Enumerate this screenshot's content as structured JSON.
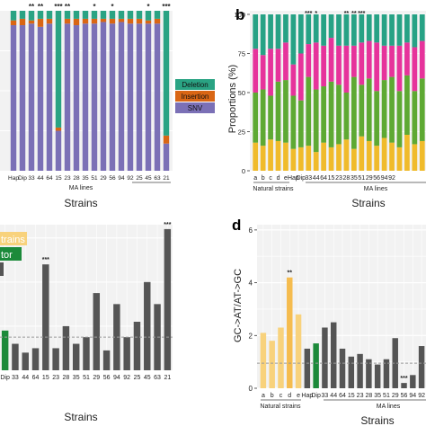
{
  "colors": {
    "snv": "#7b70b6",
    "insertion": "#d96614",
    "deletion": "#2aa383",
    "spec_yellow": "#f0bb2b",
    "spec_green": "#5ea933",
    "spec_magenta": "#e6339b",
    "spec_teal": "#27a285",
    "natural_bar": "#f8d27c",
    "natural_highlight": "#f5bc4f",
    "ancestor_bar": "#1c8a3a",
    "ma_bar": "#555555",
    "panel_bg": "#f2f2f2",
    "grid": "#ffffff",
    "dashed_line": "#9a9a9a"
  },
  "panel_labels": {
    "b": "b",
    "d": "d"
  },
  "chart_data": [
    {
      "id": "a",
      "type": "bar",
      "stacked": true,
      "xlabel": "Strains",
      "group_label_ma": "MA lines",
      "categories": [
        "Hap",
        "Dip",
        "33",
        "44",
        "64",
        "15",
        "23",
        "28",
        "35",
        "51",
        "29",
        "56",
        "94",
        "92",
        "25",
        "45",
        "63",
        "21"
      ],
      "visible_tick_labels": [
        "Hap",
        "Dip",
        "33",
        "44",
        "64",
        "15",
        "23",
        "28",
        "35",
        "51",
        "29",
        "56",
        "94",
        "92",
        "25",
        "45",
        "63",
        "21"
      ],
      "series": [
        {
          "name": "SNV",
          "color": "#7b70b6",
          "values": [
            91,
            91,
            92,
            90,
            92,
            25,
            92,
            91,
            92,
            92,
            93,
            92,
            93,
            92,
            92,
            92,
            92,
            17
          ]
        },
        {
          "name": "Insertion",
          "color": "#d96614",
          "values": [
            3,
            4,
            2,
            5,
            3,
            2,
            3,
            4,
            3,
            3,
            2,
            3,
            2,
            3,
            3,
            2,
            3,
            5
          ]
        },
        {
          "name": "Deletion",
          "color": "#2aa383",
          "values": [
            6,
            5,
            6,
            5,
            5,
            73,
            5,
            5,
            5,
            5,
            5,
            5,
            5,
            5,
            5,
            6,
            5,
            78
          ]
        }
      ],
      "significance": [
        "",
        "",
        "**",
        "**",
        "",
        "***",
        "**",
        "",
        "",
        "*",
        "",
        "*",
        "",
        "",
        "",
        "*",
        "",
        "***"
      ],
      "legend": [
        "Deletion",
        "Insertion",
        "SNV"
      ],
      "ylim": [
        0,
        100
      ]
    },
    {
      "id": "b",
      "type": "bar",
      "stacked": true,
      "ylabel": "Proportions (%)",
      "xlabel": "Strains",
      "group_label_natural": "Natural strains",
      "group_label_ma": "MA lines",
      "categories": [
        "a",
        "b",
        "c",
        "d",
        "e",
        "Hap",
        "Dip",
        "33",
        "44",
        "64",
        "15",
        "23",
        "28",
        "35",
        "51",
        "29",
        "56",
        "94",
        "92",
        "25",
        "45",
        "63",
        "21"
      ],
      "visible_tick_labels": [
        "a",
        "b",
        "c",
        "d",
        "e",
        "Hap",
        "Dip",
        "33",
        "44",
        "64",
        "15",
        "23",
        "28",
        "35",
        "51",
        "29",
        "56",
        "94",
        "92"
      ],
      "yticks": [
        0,
        25,
        50,
        75,
        100
      ],
      "ylim": [
        0,
        100
      ],
      "series": [
        {
          "name": "",
          "color": "#f0bb2b",
          "values": [
            18,
            16,
            20,
            19,
            18,
            14,
            15,
            16,
            12,
            18,
            15,
            17,
            20,
            14,
            22,
            19,
            16,
            21,
            18,
            15,
            23,
            17,
            19
          ]
        },
        {
          "name": "",
          "color": "#5ea933",
          "values": [
            32,
            36,
            28,
            38,
            40,
            34,
            30,
            44,
            40,
            36,
            42,
            38,
            30,
            46,
            33,
            40,
            35,
            37,
            42,
            36,
            38,
            34,
            40
          ]
        },
        {
          "name": "",
          "color": "#e6339b",
          "values": [
            28,
            22,
            30,
            21,
            24,
            20,
            30,
            21,
            30,
            26,
            28,
            25,
            30,
            20,
            27,
            24,
            31,
            22,
            20,
            29,
            21,
            28,
            24
          ]
        },
        {
          "name": "",
          "color": "#27a285",
          "values": [
            22,
            26,
            22,
            22,
            18,
            32,
            25,
            19,
            18,
            20,
            15,
            20,
            20,
            20,
            18,
            17,
            18,
            20,
            20,
            20,
            18,
            21,
            17
          ]
        }
      ],
      "significance": [
        "",
        "",
        "",
        "",
        "",
        "",
        "",
        "***",
        "*",
        "",
        "",
        "",
        "**",
        "**",
        "***",
        "",
        "",
        "",
        "",
        "",
        "",
        "",
        ""
      ]
    },
    {
      "id": "c",
      "type": "bar",
      "xlabel": "Strains",
      "legend_fragments": [
        "trains",
        "tor"
      ],
      "categories": [
        "Dip",
        "33",
        "44",
        "64",
        "15",
        "23",
        "28",
        "35",
        "51",
        "29",
        "56",
        "94",
        "92",
        "25",
        "45",
        "63",
        "21"
      ],
      "visible_tick_labels": [
        "Dip",
        "33",
        "44",
        "64",
        "15",
        "23",
        "28",
        "35",
        "51",
        "29",
        "56",
        "94",
        "92",
        "25",
        "45",
        "63",
        "21"
      ],
      "values": [
        18,
        12,
        8,
        10,
        48,
        10,
        20,
        12,
        15,
        35,
        9,
        30,
        15,
        22,
        40,
        30,
        64
      ],
      "significance": [
        "",
        "",
        "",
        "",
        "***",
        "",
        "",
        "",
        "",
        "",
        "",
        "",
        "",
        "",
        "",
        "",
        "***"
      ],
      "baseline": 15,
      "ylim": [
        0,
        66
      ]
    },
    {
      "id": "d",
      "type": "bar",
      "ylabel": "GC->AT/AT->GC",
      "xlabel": "Strains",
      "group_label_natural": "Natural strains",
      "group_label_ma": "MA lines",
      "categories": [
        "a",
        "b",
        "c",
        "d",
        "e",
        "Hap",
        "Dip",
        "33",
        "44",
        "64",
        "15",
        "23",
        "28",
        "35",
        "51",
        "29",
        "56",
        "94",
        "92"
      ],
      "visible_tick_labels": [
        "a",
        "b",
        "c",
        "d",
        "e",
        "Hap",
        "Dip",
        "33",
        "44",
        "64",
        "15",
        "23",
        "28",
        "35",
        "51",
        "29",
        "56",
        "94",
        "92"
      ],
      "yticks": [
        0,
        2,
        4,
        6
      ],
      "ylim": [
        0,
        6.2
      ],
      "values": [
        2.1,
        1.8,
        2.3,
        4.2,
        2.8,
        1.5,
        1.7,
        2.3,
        2.5,
        1.5,
        1.2,
        1.3,
        1.1,
        0.9,
        1.1,
        1.9,
        0.2,
        0.5,
        1.6
      ],
      "significance": [
        "",
        "",
        "",
        "**",
        "",
        "",
        "",
        "",
        "",
        "",
        "",
        "",
        "",
        "",
        "",
        "",
        "***",
        "",
        ""
      ],
      "baseline": 0.95
    }
  ]
}
